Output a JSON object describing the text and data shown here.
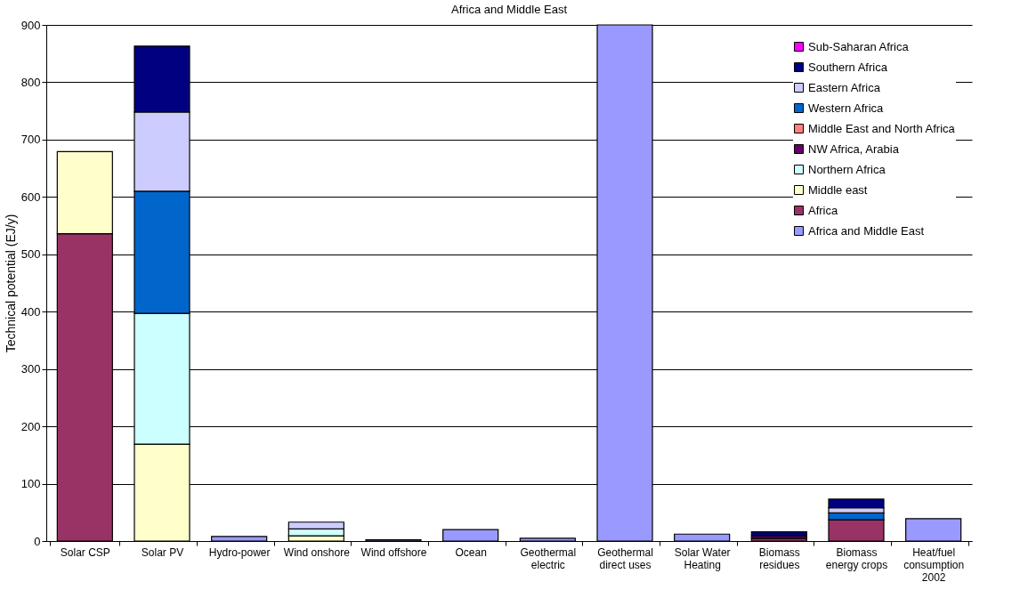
{
  "chart_data": {
    "type": "bar",
    "title": "Africa and Middle East",
    "ylabel": "Technical potential (EJ/y)",
    "categories": [
      "Solar CSP",
      "Solar PV",
      "Hydro-power",
      "Wind onshore",
      "Wind offshore",
      "Ocean",
      "Geothermal electric",
      "Geothermal direct uses",
      "Solar Water Heating",
      "Biomass residues",
      "Biomass energy crops",
      "Heat/fuel consumption 2002"
    ],
    "stacked": true,
    "ylim": [
      0,
      900
    ],
    "yticks": [
      0,
      100,
      200,
      300,
      400,
      500,
      600,
      700,
      800,
      900
    ],
    "grid": "y",
    "legend": "top right",
    "series": [
      {
        "name": "Africa and Middle East",
        "color": "#9999ff",
        "values": [
          null,
          null,
          8,
          null,
          2,
          20,
          5,
          900,
          12,
          null,
          null,
          39
        ]
      },
      {
        "name": "Africa",
        "color": "#993366",
        "values": [
          536,
          null,
          null,
          null,
          null,
          null,
          null,
          null,
          null,
          5,
          37,
          null
        ]
      },
      {
        "name": "Middle east",
        "color": "#ffffcc",
        "values": [
          143,
          169,
          null,
          9,
          null,
          null,
          null,
          null,
          null,
          null,
          null,
          null
        ]
      },
      {
        "name": "Northern Africa",
        "color": "#ccffff",
        "values": [
          null,
          228,
          null,
          12,
          null,
          null,
          null,
          null,
          null,
          null,
          null,
          null
        ]
      },
      {
        "name": "NW Africa, Arabia",
        "color": "#660066",
        "values": [
          null,
          null,
          null,
          null,
          null,
          null,
          null,
          null,
          null,
          4,
          null,
          null
        ]
      },
      {
        "name": "Middle East and North Africa",
        "color": "#ff8080",
        "values": [
          null,
          null,
          null,
          null,
          null,
          null,
          null,
          null,
          null,
          null,
          null,
          null
        ]
      },
      {
        "name": "Western Africa",
        "color": "#0066cc",
        "values": [
          null,
          213,
          null,
          null,
          null,
          null,
          null,
          null,
          null,
          null,
          12,
          null
        ]
      },
      {
        "name": "Eastern Africa",
        "color": "#ccccff",
        "values": [
          null,
          138,
          null,
          12,
          null,
          null,
          null,
          null,
          null,
          null,
          9,
          null
        ]
      },
      {
        "name": "Southern Africa",
        "color": "#000080",
        "values": [
          null,
          115,
          null,
          null,
          null,
          null,
          null,
          null,
          null,
          7,
          15,
          null
        ]
      },
      {
        "name": "Sub-Saharan Africa",
        "color": "#ff00ff",
        "values": [
          null,
          null,
          null,
          null,
          null,
          null,
          null,
          null,
          null,
          null,
          null,
          null
        ]
      }
    ]
  }
}
